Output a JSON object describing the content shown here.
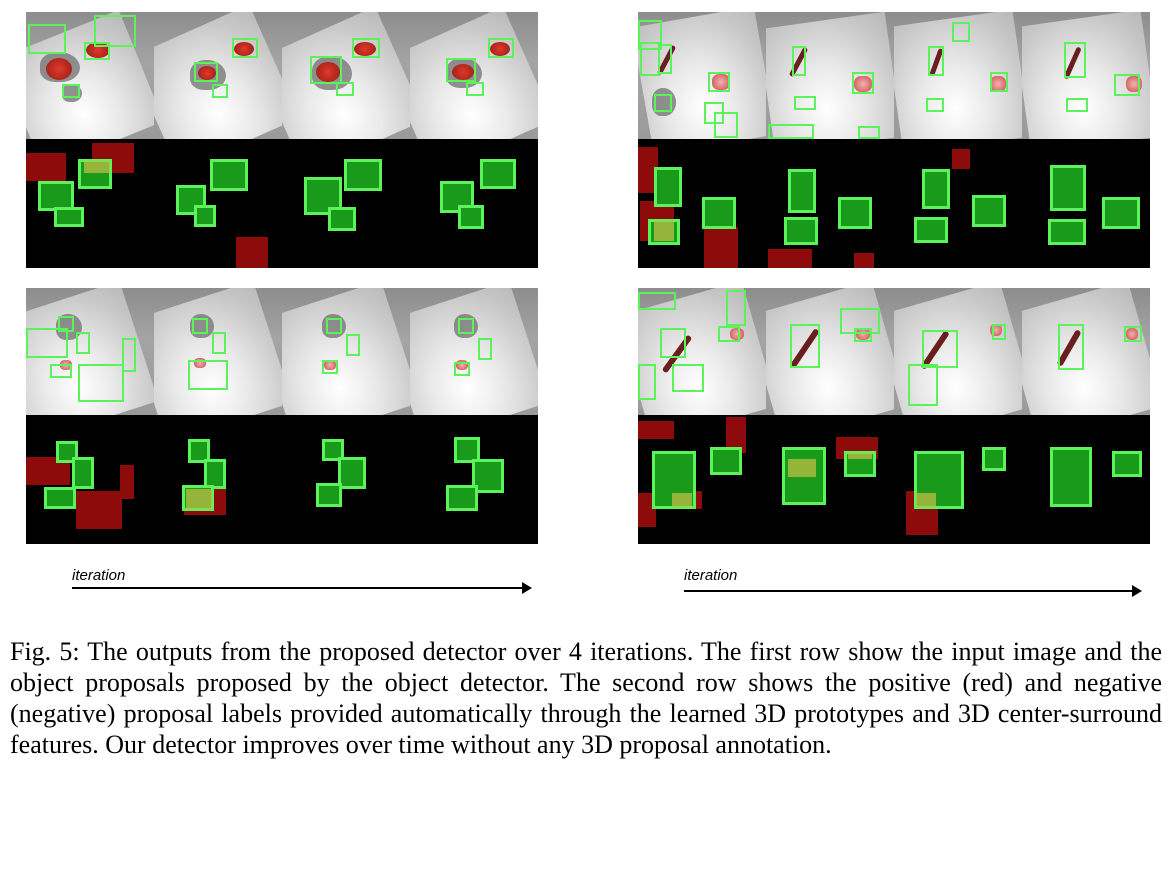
{
  "figure": {
    "iteration_label": "iteration",
    "caption": "Fig. 5: The outputs from the proposed detector over 4 iterations. The first row show the input image and the object proposals proposed by the object detector. The second row shows the positive (red) and negative (negative) proposal labels provided automatically through the learned 3D prototypes and 3D center-surround features. Our detector improves over time without any 3D proposal annotation.",
    "colors": {
      "negative_box": "#5cf25c",
      "positive_box": "#8e0b0b",
      "background": "#000000"
    },
    "iterations": 4,
    "panels": [
      "top-left",
      "top-right",
      "bottom-left",
      "bottom-right"
    ]
  }
}
